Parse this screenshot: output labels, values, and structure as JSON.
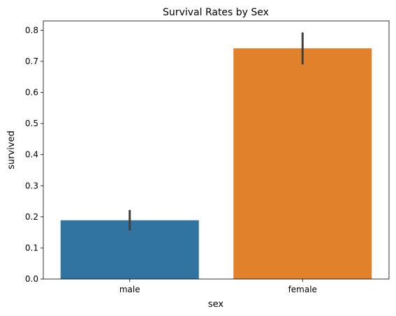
{
  "chart_data": {
    "type": "bar",
    "title": "Survival Rates by Sex",
    "xlabel": "sex",
    "ylabel": "survived",
    "categories": [
      "male",
      "female"
    ],
    "values": [
      0.189,
      0.742
    ],
    "error_bars": [
      {
        "low": 0.156,
        "high": 0.222
      },
      {
        "low": 0.69,
        "high": 0.793
      }
    ],
    "colors": [
      "#3274a1",
      "#e1812c"
    ],
    "error_bar_color": "#3f3f3f",
    "ylim": [
      0.0,
      0.83
    ],
    "yticks": [
      0.0,
      0.1,
      0.2,
      0.3,
      0.4,
      0.5,
      0.6,
      0.7,
      0.8
    ],
    "ytick_labels": [
      "0.0",
      "0.1",
      "0.2",
      "0.3",
      "0.4",
      "0.5",
      "0.6",
      "0.7",
      "0.8"
    ],
    "grid": false,
    "legend": false
  }
}
